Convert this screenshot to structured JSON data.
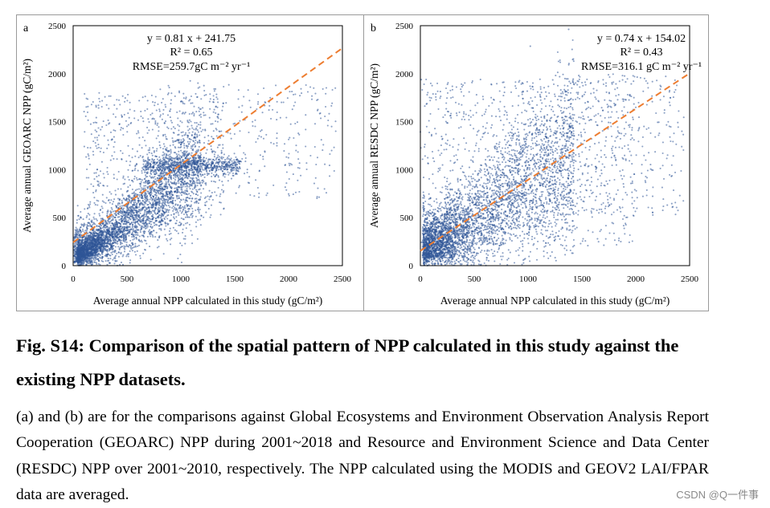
{
  "chart_data": [
    {
      "type": "scatter",
      "panel_label": "a",
      "xlabel": "Average annual NPP calculated in this study (gC/m²)",
      "ylabel": "Average annual GEOARC NPP (gC/m²)",
      "xlim": [
        0,
        2500
      ],
      "ylim": [
        0,
        2500
      ],
      "x_ticks": [
        0,
        500,
        1000,
        1500,
        2000,
        2500
      ],
      "y_ticks": [
        0,
        500,
        1000,
        1500,
        2000,
        2500
      ],
      "point_color": "#2f5597",
      "fit_line": {
        "slope": 0.81,
        "intercept": 241.75,
        "color": "#ed7d31",
        "style": "dashed"
      },
      "annotations": [
        "y = 0.81 x + 241.75",
        "R² = 0.65",
        "RMSE=259.7gC m⁻² yr⁻¹"
      ]
    },
    {
      "type": "scatter",
      "panel_label": "b",
      "xlabel": "Average annual NPP calculated in this study (gC/m²)",
      "ylabel": "Average annual RESDC NPP (gC/m²)",
      "xlim": [
        0,
        2500
      ],
      "ylim": [
        0,
        2500
      ],
      "x_ticks": [
        0,
        500,
        1000,
        1500,
        2000,
        2500
      ],
      "y_ticks": [
        0,
        500,
        1000,
        1500,
        2000,
        2500
      ],
      "point_color": "#2f5597",
      "fit_line": {
        "slope": 0.74,
        "intercept": 154.02,
        "color": "#ed7d31",
        "style": "dashed"
      },
      "annotations": [
        "y = 0.74 x + 154.02",
        "R² = 0.43",
        "RMSE=316.1 gC m⁻² yr⁻¹"
      ]
    }
  ],
  "caption": {
    "title": "Fig. S14: Comparison of the spatial pattern of NPP calculated in this study against the existing NPP datasets.",
    "body": "(a) and (b) are for the comparisons against Global Ecosystems and Environment Observation Analysis Report Cooperation (GEOARC) NPP during 2001~2018 and Resource and Environment Science and Data Center (RESDC) NPP over 2001~2010, respectively. The NPP calculated using the MODIS and GEOV2 LAI/FPAR data are averaged."
  },
  "watermark": "CSDN @Q一件事"
}
